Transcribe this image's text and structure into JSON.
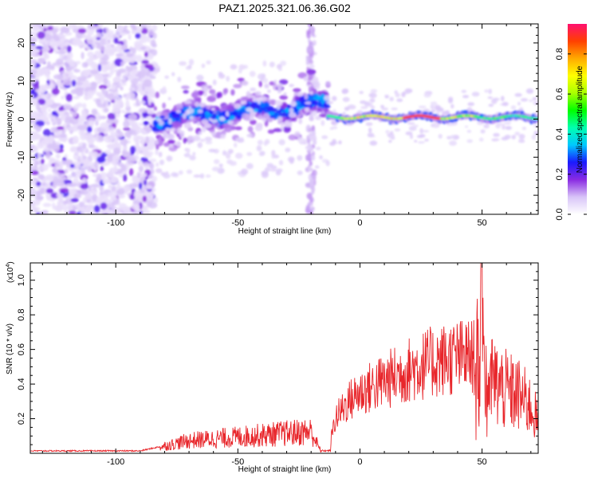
{
  "title": "PAZ1.2025.321.06.36.G02",
  "colors": {
    "signal": "#e8262b",
    "purple": "#7a22e8",
    "axis": "#000000"
  },
  "chart_data": [
    {
      "type": "heatmap",
      "name": "spectrogram",
      "xlabel": "Height of straight line (km)",
      "ylabel": "Frequency (Hz)",
      "xlim": [
        -135,
        73
      ],
      "ylim": [
        -25,
        25
      ],
      "xticks": [
        -100,
        -50,
        0,
        50
      ],
      "xtick_labels": [
        "-100",
        "-50",
        "0",
        "50"
      ],
      "yticks": [
        -20,
        -10,
        0,
        10,
        20
      ],
      "ytick_labels": [
        "-20",
        "-10",
        "0",
        "10",
        "20"
      ],
      "colorbar": {
        "label": "Normalized spectral amplitude",
        "range": [
          0,
          0.95
        ],
        "ticks": [
          0.0,
          0.2,
          0.4,
          0.6,
          0.8
        ],
        "tick_labels": [
          "0.0",
          "0.2",
          "0.4",
          "0.6",
          "0.8"
        ],
        "colormap": [
          "#ffffff",
          "#d8c4f8",
          "#8a2be2",
          "#1a1aff",
          "#00c8ff",
          "#00ffb0",
          "#00ff00",
          "#a8ff00",
          "#ffff00",
          "#ffaa00",
          "#ff4000",
          "#ff1070"
        ]
      },
      "regions": [
        {
          "x_range": [
            -135,
            -84
          ],
          "description": "scattered noise",
          "f_range": [
            -25,
            25
          ],
          "amplitude": 0.08
        },
        {
          "x_range": [
            -84,
            -13
          ],
          "description": "wavy band",
          "f_center_start": 0,
          "f_center_end": 4,
          "amplitude": 0.3
        },
        {
          "x_range": [
            -13,
            73
          ],
          "description": "stable carrier near 0 Hz",
          "f_center": 0.5,
          "amplitude": 0.8
        }
      ]
    },
    {
      "type": "line",
      "name": "snr",
      "xlabel": "Height of straight line (km)",
      "ylabel": "SNR (10 * v/v)",
      "y_multiplier_label": "(x10",
      "y_multiplier_exp": "4",
      "y_multiplier_close": ")",
      "xlim": [
        -135,
        73
      ],
      "ylim": [
        0,
        1.1
      ],
      "xticks": [
        -100,
        -50,
        0,
        50
      ],
      "xtick_labels": [
        "-100",
        "-50",
        "0",
        "50"
      ],
      "yticks": [
        0.2,
        0.4,
        0.6,
        0.8,
        1.0
      ],
      "ytick_labels": [
        "0.2",
        "0.4",
        "0.6",
        "0.8",
        "1.0"
      ],
      "envelope_km": [
        -135,
        -90,
        -80,
        -70,
        -60,
        -50,
        -40,
        -30,
        -20,
        -16,
        -13,
        -10,
        -5,
        0,
        10,
        20,
        30,
        40,
        47,
        50,
        52,
        55,
        60,
        65,
        70,
        73
      ],
      "envelope_snr": [
        0.01,
        0.01,
        0.04,
        0.07,
        0.08,
        0.09,
        0.1,
        0.11,
        0.12,
        0.01,
        0.01,
        0.22,
        0.32,
        0.38,
        0.45,
        0.52,
        0.57,
        0.6,
        0.6,
        0.65,
        0.5,
        0.45,
        0.4,
        0.37,
        0.3,
        0.2
      ]
    }
  ]
}
